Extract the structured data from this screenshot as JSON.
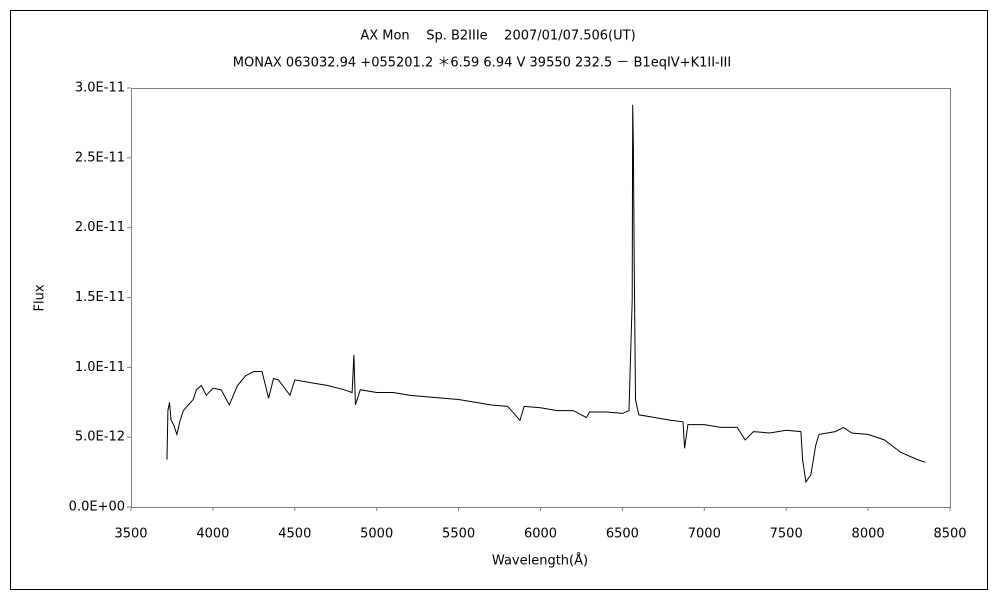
{
  "chart_data": {
    "type": "line",
    "title": "AX Mon    Sp. B2IIIe    2007/01/07.506(UT)",
    "subtitle": "MONAX 063032.94 +055201.2 ＊6.59 6.94 V 39550 232.5 － B1eqIV+K1II-III",
    "x_label": "Wavelength(Å)",
    "y_label": "Flux",
    "xlim": [
      3500,
      8500
    ],
    "xticks": [
      3500,
      4000,
      4500,
      5000,
      5500,
      6000,
      6500,
      7000,
      7500,
      8000,
      8500
    ],
    "ylim": [
      0,
      3e-11
    ],
    "yticks": [
      {
        "value": 0,
        "label": "0.0E+00"
      },
      {
        "value": 5e-12,
        "label": "5.0E-12"
      },
      {
        "value": 1e-11,
        "label": "1.0E-11"
      },
      {
        "value": 1.5e-11,
        "label": "1.5E-11"
      },
      {
        "value": 2e-11,
        "label": "2.0E-11"
      },
      {
        "value": 2.5e-11,
        "label": "2.5E-11"
      },
      {
        "value": 3e-11,
        "label": "3.0E-11"
      }
    ],
    "grid": false,
    "series": [
      {
        "color": "#000000",
        "x": [
          3720,
          3725,
          3735,
          3745,
          3760,
          3780,
          3800,
          3820,
          3850,
          3880,
          3900,
          3930,
          3960,
          4000,
          4050,
          4100,
          4150,
          4200,
          4250,
          4300,
          4340,
          4370,
          4400,
          4471,
          4500,
          4600,
          4700,
          4800,
          4850,
          4861,
          4870,
          4900,
          5000,
          5100,
          5200,
          5300,
          5400,
          5500,
          5600,
          5700,
          5800,
          5875,
          5900,
          6000,
          6100,
          6200,
          6280,
          6300,
          6400,
          6500,
          6540,
          6560,
          6563,
          6567,
          6572,
          6580,
          6600,
          6700,
          6800,
          6870,
          6880,
          6900,
          7000,
          7100,
          7200,
          7250,
          7300,
          7400,
          7500,
          7590,
          7600,
          7620,
          7650,
          7680,
          7700,
          7800,
          7850,
          7900,
          8000,
          8100,
          8200,
          8300,
          8350
        ],
        "values": [
          3.4e-12,
          6.9e-12,
          7.5e-12,
          6.2e-12,
          5.9e-12,
          5.2e-12,
          6.2e-12,
          6.9e-12,
          7.3e-12,
          7.7e-12,
          8.4e-12,
          8.7e-12,
          8e-12,
          8.5e-12,
          8.4e-12,
          7.3e-12,
          8.7e-12,
          9.4e-12,
          9.7e-12,
          9.7e-12,
          7.8e-12,
          9.2e-12,
          9.1e-12,
          8e-12,
          9.1e-12,
          8.9e-12,
          8.7e-12,
          8.4e-12,
          8.2e-12,
          1.09e-11,
          7.3e-12,
          8.4e-12,
          8.2e-12,
          8.2e-12,
          8e-12,
          7.9e-12,
          7.8e-12,
          7.7e-12,
          7.5e-12,
          7.3e-12,
          7.2e-12,
          6.2e-12,
          7.2e-12,
          7.1e-12,
          6.9e-12,
          6.9e-12,
          6.4e-12,
          6.8e-12,
          6.8e-12,
          6.7e-12,
          6.9e-12,
          1.48e-11,
          2.88e-11,
          2.56e-11,
          1.77e-11,
          7.7e-12,
          6.6e-12,
          6.4e-12,
          6.2e-12,
          6.1e-12,
          4.2e-12,
          5.9e-12,
          5.9e-12,
          5.7e-12,
          5.7e-12,
          4.8e-12,
          5.4e-12,
          5.3e-12,
          5.5e-12,
          5.4e-12,
          3.4e-12,
          1.8e-12,
          2.3e-12,
          4.4e-12,
          5.2e-12,
          5.4e-12,
          5.7e-12,
          5.3e-12,
          5.2e-12,
          4.8e-12,
          3.9e-12,
          3.4e-12,
          3.2e-12
        ]
      }
    ]
  }
}
